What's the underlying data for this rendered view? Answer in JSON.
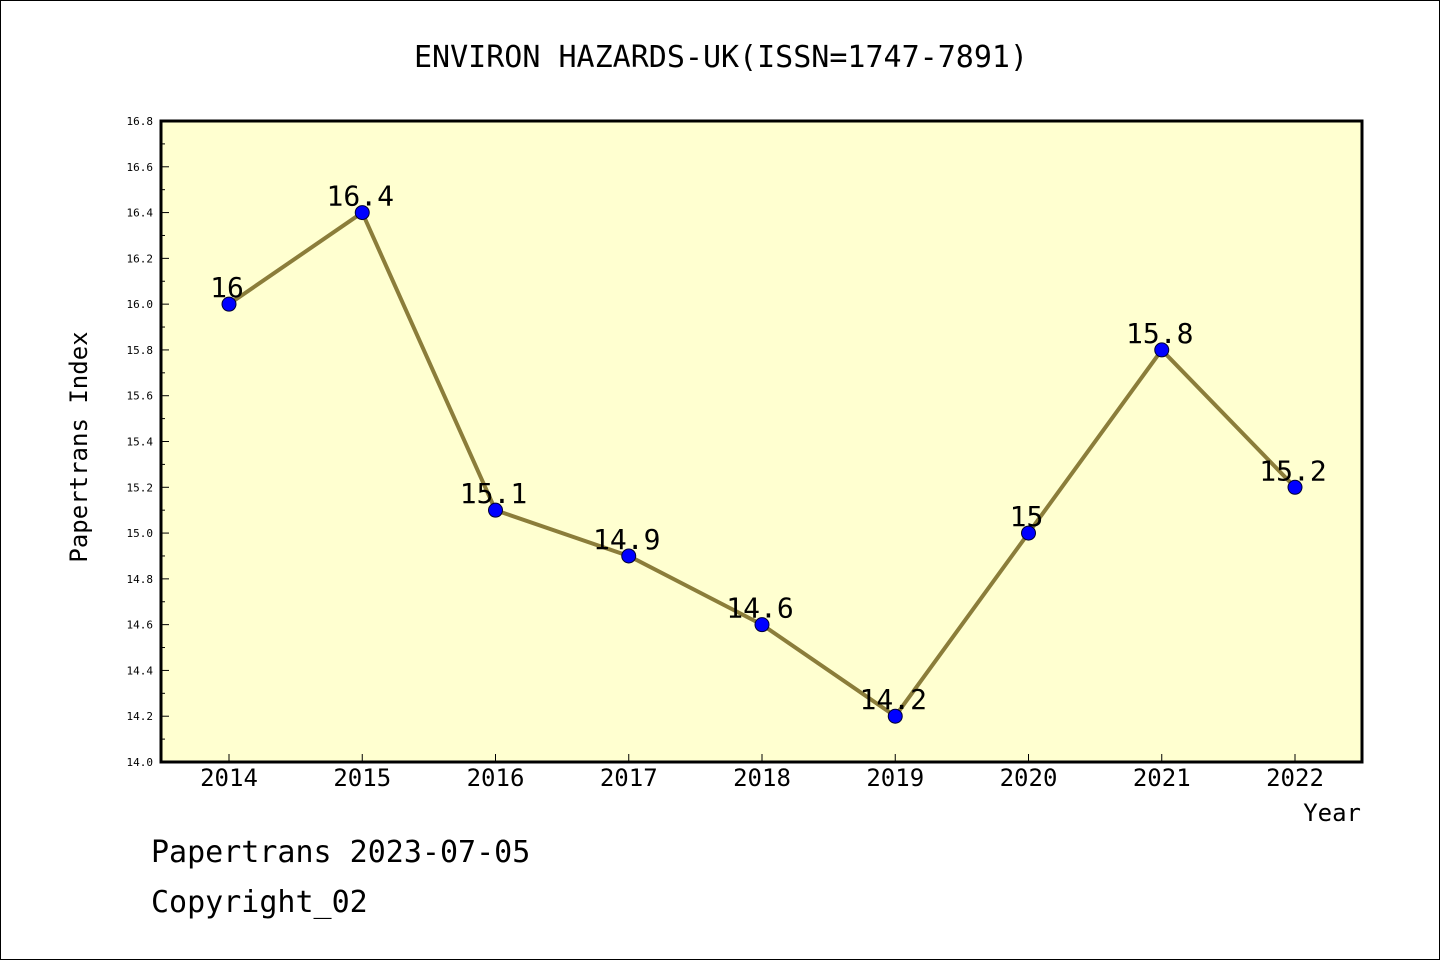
{
  "chart_data": {
    "type": "line",
    "title": "ENVIRON HAZARDS-UK(ISSN=1747-7891)",
    "xlabel": "Year",
    "ylabel": "Papertrans Index",
    "categories": [
      "2014",
      "2015",
      "2016",
      "2017",
      "2018",
      "2019",
      "2020",
      "2021",
      "2022"
    ],
    "values": [
      16,
      16.4,
      15.1,
      14.9,
      14.6,
      14.2,
      15,
      15.8,
      15.2
    ],
    "data_labels": [
      "16",
      "16.4",
      "15.1",
      "14.9",
      "14.6",
      "14.2",
      "15",
      "15.8",
      "15.2"
    ],
    "yticks": [
      "14.0",
      "14.2",
      "14.4",
      "14.6",
      "14.8",
      "15.0",
      "15.2",
      "15.4",
      "15.6",
      "15.8",
      "16.0",
      "16.2",
      "16.4",
      "16.6",
      "16.8"
    ],
    "ylim": [
      14.0,
      16.8
    ],
    "grid": false,
    "colors": {
      "plot_background": "#ffffd0",
      "line": "#8b7d3a",
      "marker": "#0000ff"
    }
  },
  "footer": {
    "line1": "Papertrans 2023-07-05",
    "line2": "Copyright_02"
  }
}
